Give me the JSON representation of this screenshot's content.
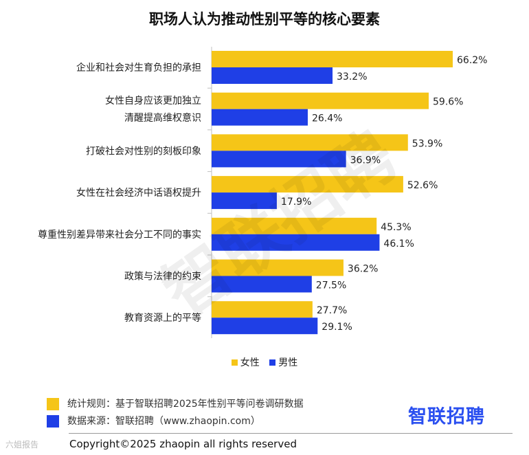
{
  "chart_data": {
    "type": "bar",
    "orientation": "horizontal",
    "title": "职场人认为推动性别平等的核心要素",
    "categories": [
      [
        "企业和社会对生育负担的承担"
      ],
      [
        "女性自身应该更加独立",
        "清醒提高维权意识"
      ],
      [
        "打破社会对性别的刻板印象"
      ],
      [
        "女性在社会经济中话语权提升"
      ],
      [
        "尊重性别差异带来社会分工不同的事实"
      ],
      [
        "政策与法律的约束"
      ],
      [
        "教育资源上的平等"
      ]
    ],
    "series": [
      {
        "name": "女性",
        "color": "#f5c518",
        "values": [
          66.2,
          59.6,
          53.9,
          52.6,
          45.3,
          36.2,
          27.7
        ]
      },
      {
        "name": "男性",
        "color": "#1f3fe6",
        "values": [
          33.2,
          26.4,
          36.9,
          17.9,
          46.1,
          27.5,
          29.1
        ]
      }
    ],
    "value_suffix": "%",
    "legend_position": "bottom",
    "grid": false
  },
  "watermark": "智联招聘",
  "notes": [
    {
      "text": "统计规则：基于智联招聘2025年性别平等问卷调研数据",
      "color": "#f5c518"
    },
    {
      "text": "数据来源：智联招聘（www.zhaopin.com）",
      "color": "#1f3fe6"
    }
  ],
  "brand": "智联招聘",
  "copyright": "Copyright©2025 zhaopin all rights reserved",
  "corner_mark": "六姐报告"
}
